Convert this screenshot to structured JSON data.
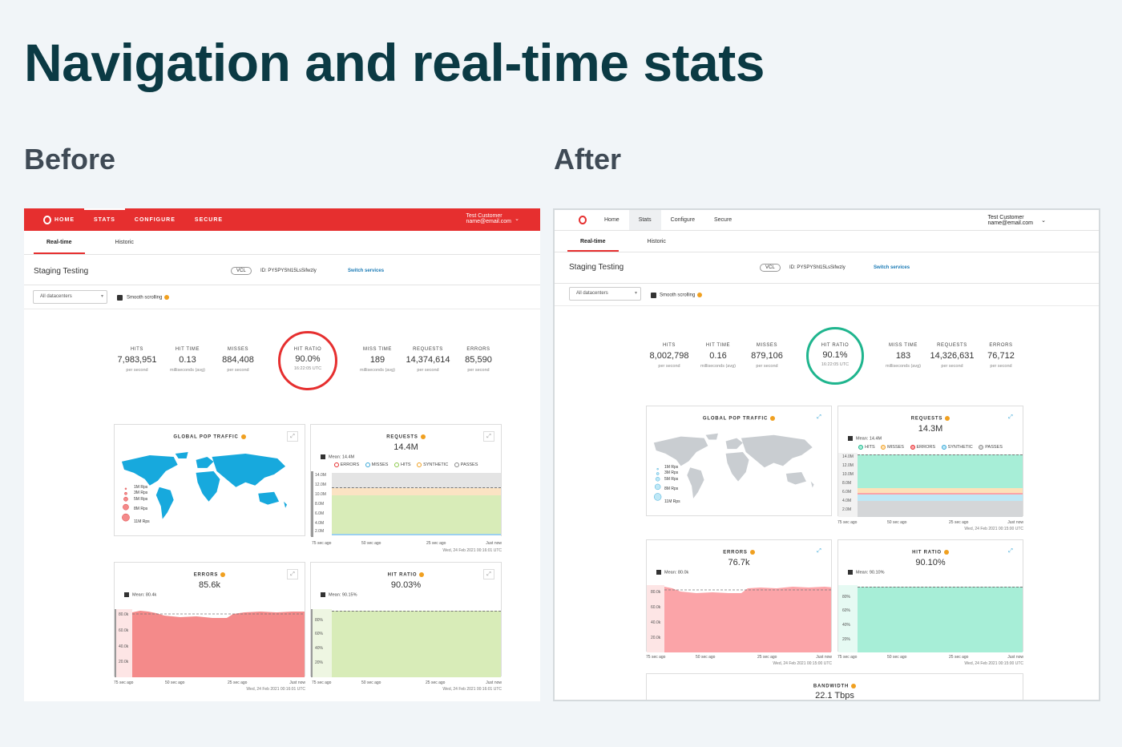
{
  "page_title": "Navigation and real-time stats",
  "before_label": "Before",
  "after_label": "After",
  "before": {
    "nav": {
      "home": "HOME",
      "stats": "STATS",
      "configure": "CONFIGURE",
      "secure": "SECURE"
    },
    "user": {
      "name": "Test Customer",
      "email": "name@email.com"
    },
    "tabs": {
      "realtime": "Real-time",
      "historic": "Historic"
    },
    "service": {
      "name": "Staging Testing",
      "vcl": "VCL",
      "id": "ID: PYSPYShl15LsSifwzly",
      "switch": "Switch services"
    },
    "filter": {
      "datacenter": "All datacenters",
      "smooth": "Smooth scrolling"
    },
    "stats": {
      "hits": {
        "label": "HITS",
        "value": "7,983,951",
        "unit": "per second"
      },
      "hit_time": {
        "label": "HIT TIME",
        "value": "0.13",
        "unit": "milliseconds (avg)"
      },
      "misses": {
        "label": "MISSES",
        "value": "884,408",
        "unit": "per second"
      },
      "hit_ratio": {
        "label": "HIT RATIO",
        "value": "90.0%",
        "unit": "16:22:05 UTC",
        "ratio": 0.9
      },
      "miss_time": {
        "label": "MISS TIME",
        "value": "189",
        "unit": "milliseconds (avg)"
      },
      "requests": {
        "label": "REQUESTS",
        "value": "14,374,614",
        "unit": "per second"
      },
      "errors": {
        "label": "ERRORS",
        "value": "85,590",
        "unit": "per second"
      }
    },
    "cards": {
      "map": {
        "title": "GLOBAL POP TRAFFIC",
        "legend": [
          "1M Rps",
          "3M Rps",
          "5M Rps",
          "8M Rps",
          "11M Rps"
        ]
      },
      "requests": {
        "title": "REQUESTS",
        "value": "14.4M",
        "mean": "Mean: 14.4M",
        "legend": [
          "ERRORS",
          "MISSES",
          "HITS",
          "SYNTHETIC",
          "PASSES"
        ],
        "yticks": [
          "14.0M",
          "12.0M",
          "10.0M",
          "8.0M",
          "6.0M",
          "4.0M",
          "2.0M"
        ]
      },
      "errors": {
        "title": "ERRORS",
        "value": "85.6k",
        "mean": "Mean: 80.4k",
        "yticks": [
          "80.0k",
          "60.0k",
          "40.0k",
          "20.0k"
        ]
      },
      "hit_ratio": {
        "title": "HIT RATIO",
        "value": "90.03%",
        "mean": "Mean: 90.15%",
        "yticks": [
          "80%",
          "60%",
          "40%",
          "20%"
        ]
      }
    },
    "xaxis": {
      "t75": "75 sec ago",
      "t50": "50 sec ago",
      "t25": "25 sec ago",
      "now": "Just now",
      "stamp": "Wed, 24 Feb 2021 00:16:01 UTC"
    }
  },
  "after": {
    "nav": {
      "home": "Home",
      "stats": "Stats",
      "configure": "Configure",
      "secure": "Secure"
    },
    "user": {
      "name": "Test Customer",
      "email": "name@email.com"
    },
    "tabs": {
      "realtime": "Real-time",
      "historic": "Historic"
    },
    "service": {
      "name": "Staging Testing",
      "vcl": "VCL",
      "id": "ID: PYSPYShl15LsSifwzly",
      "switch": "Switch services"
    },
    "filter": {
      "datacenter": "All datacenters",
      "smooth": "Smooth scrolling"
    },
    "stats": {
      "hits": {
        "label": "HITS",
        "value": "8,002,798",
        "unit": "per second"
      },
      "hit_time": {
        "label": "HIT TIME",
        "value": "0.16",
        "unit": "milliseconds (avg)"
      },
      "misses": {
        "label": "MISSES",
        "value": "879,106",
        "unit": "per second"
      },
      "hit_ratio": {
        "label": "HIT RATIO",
        "value": "90.1%",
        "unit": "16:22:05 UTC",
        "ratio": 0.9
      },
      "miss_time": {
        "label": "MISS TIME",
        "value": "183",
        "unit": "milliseconds (avg)"
      },
      "requests": {
        "label": "REQUESTS",
        "value": "14,326,631",
        "unit": "per second"
      },
      "errors": {
        "label": "ERRORS",
        "value": "76,712",
        "unit": "per second"
      }
    },
    "cards": {
      "map": {
        "title": "GLOBAL POP TRAFFIC",
        "legend": [
          "1M Rps",
          "3M Rps",
          "5M Rps",
          "8M Rps",
          "11M Rps"
        ]
      },
      "requests": {
        "title": "REQUESTS",
        "value": "14.3M",
        "mean": "Mean: 14.4M",
        "legend": [
          "HITS",
          "MISSES",
          "ERRORS",
          "SYNTHETIC",
          "PASSES"
        ],
        "yticks": [
          "14.0M",
          "12.0M",
          "10.0M",
          "8.0M",
          "6.0M",
          "4.0M",
          "2.0M"
        ]
      },
      "errors": {
        "title": "ERRORS",
        "value": "76.7k",
        "mean": "Mean: 80.0k",
        "yticks": [
          "80.0k",
          "60.0k",
          "40.0k",
          "20.0k"
        ]
      },
      "hit_ratio": {
        "title": "HIT RATIO",
        "value": "90.10%",
        "mean": "Mean: 90.10%",
        "yticks": [
          "80%",
          "60%",
          "40%",
          "20%"
        ]
      },
      "bandwidth": {
        "title": "BANDWIDTH",
        "value": "22.1 Tbps"
      }
    },
    "xaxis": {
      "t75": "75 sec ago",
      "t50": "50 sec ago",
      "t25": "25 sec ago",
      "now": "Just now",
      "stamp": "Wed, 24 Feb 2021 00:15:00 UTC"
    }
  },
  "colors": {
    "brand_red": "#e62f2f",
    "before_map": "#17a9dd",
    "after_map": "#c9cdd1",
    "before_hits": "#d8ecb8",
    "before_errors": "#f48a8a",
    "after_hits": "#a7eed7",
    "after_errors": "#fba4a8",
    "after_ring": "#1fb58e"
  }
}
